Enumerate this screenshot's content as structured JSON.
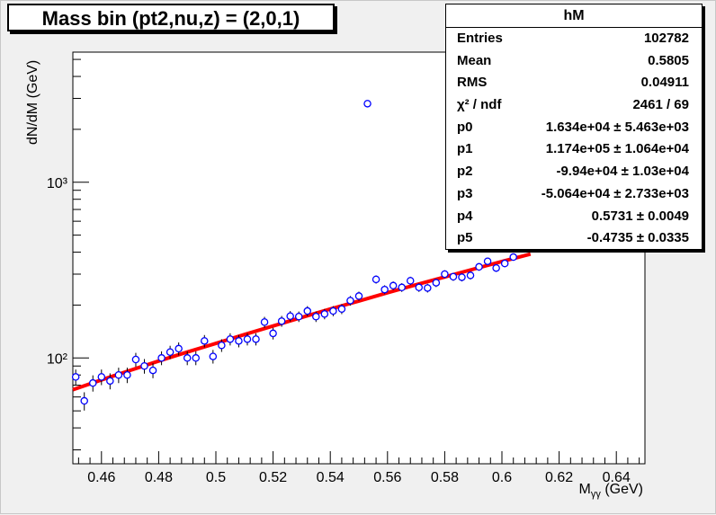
{
  "title": "Mass bin (pt2,nu,z) = (2,0,1)",
  "stats": {
    "name": "hM",
    "rows": [
      {
        "key": "Entries",
        "value": "102782"
      },
      {
        "key": "Mean",
        "value": "0.5805"
      },
      {
        "key": "RMS",
        "value": "0.04911"
      },
      {
        "key": "χ² / ndf",
        "value": "2461 / 69"
      },
      {
        "key": "p0",
        "value": "1.634e+04 ± 5.463e+03"
      },
      {
        "key": "p1",
        "value": "1.174e+05 ± 1.064e+04"
      },
      {
        "key": "p2",
        "value": "-9.94e+04 ± 1.03e+04"
      },
      {
        "key": "p3",
        "value": "-5.064e+04 ± 2.733e+03"
      },
      {
        "key": "p4",
        "value": "0.5731 ± 0.0049"
      },
      {
        "key": "p5",
        "value": "-0.4735 ± 0.0335"
      }
    ]
  },
  "colors": {
    "points": "#0000ff",
    "fit": "#ff0000",
    "frame": "#000000"
  },
  "chart_data": {
    "type": "scatter",
    "title": "Mass bin (pt2,nu,z) = (2,0,1)",
    "xlabel_main": "M",
    "xlabel_sub": "γγ",
    "xlabel_unit": "(GeV)",
    "ylabel": "dN/dM (GeV)",
    "yscale": "log",
    "xlim": [
      0.45,
      0.65
    ],
    "ylim": [
      25,
      5500
    ],
    "grid": false,
    "x_ticks": [
      "0.46",
      "0.48",
      "0.5",
      "0.52",
      "0.54",
      "0.56",
      "0.58",
      "0.6",
      "0.62",
      "0.64"
    ],
    "y_ticks": [
      "10²",
      "10³"
    ],
    "series": [
      {
        "marker": "open-circle",
        "x": [
          0.451,
          0.454,
          0.457,
          0.46,
          0.463,
          0.466,
          0.469,
          0.472,
          0.475,
          0.478,
          0.481,
          0.484,
          0.487,
          0.49,
          0.493,
          0.496,
          0.499,
          0.502,
          0.505,
          0.508,
          0.511,
          0.514,
          0.517,
          0.52,
          0.523,
          0.526,
          0.529,
          0.532,
          0.535,
          0.538,
          0.541,
          0.544,
          0.547,
          0.55,
          0.553,
          0.556,
          0.559,
          0.562,
          0.565,
          0.568,
          0.571,
          0.574,
          0.577,
          0.58,
          0.583,
          0.586,
          0.589,
          0.592,
          0.595,
          0.598,
          0.601,
          0.604
        ],
        "y": [
          78,
          57,
          72,
          78,
          74,
          80,
          80,
          98,
          90,
          85,
          100,
          108,
          113,
          100,
          100,
          125,
          102,
          118,
          128,
          125,
          128,
          128,
          160,
          138,
          162,
          173,
          172,
          185,
          172,
          178,
          185,
          190,
          212,
          225,
          2800,
          280,
          245,
          258,
          252,
          275,
          252,
          250,
          268,
          300,
          290,
          288,
          295,
          330,
          355,
          325,
          345,
          375
        ]
      }
    ],
    "fit_curve": {
      "x": [
        0.45,
        0.46,
        0.47,
        0.48,
        0.49,
        0.5,
        0.51,
        0.52,
        0.53,
        0.54,
        0.55,
        0.56,
        0.57,
        0.58,
        0.59,
        0.6,
        0.61
      ],
      "y": [
        66,
        75,
        85,
        96,
        108,
        121,
        136,
        152,
        170,
        190,
        211,
        235,
        261,
        289,
        320,
        354,
        390
      ]
    }
  }
}
